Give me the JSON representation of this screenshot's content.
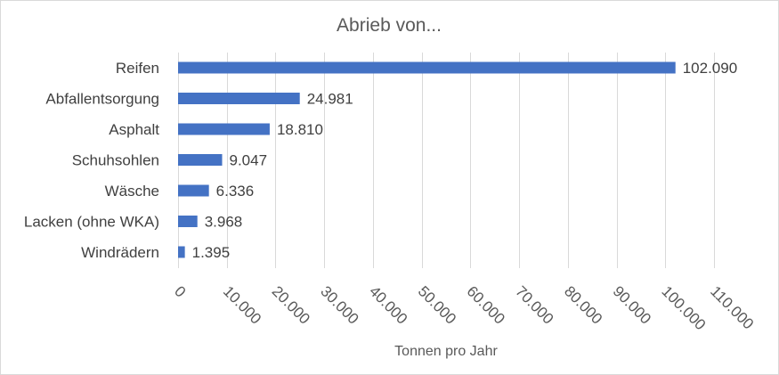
{
  "chart_data": {
    "type": "bar",
    "orientation": "horizontal",
    "title": "Abrieb von...",
    "xlabel": "Tonnen pro Jahr",
    "ylabel": "",
    "categories": [
      "Reifen",
      "Abfallentsorgung",
      "Asphalt",
      "Schuhsohlen",
      "Wäsche",
      "Lacken (ohne WKA)",
      "Windrädern"
    ],
    "values": [
      102090,
      24981,
      18810,
      9047,
      6336,
      3968,
      1395
    ],
    "value_labels": [
      "102.090",
      "24.981",
      "18.810",
      "9.047",
      "6.336",
      "3.968",
      "1.395"
    ],
    "xlim": [
      0,
      110000
    ],
    "ticks": [
      0,
      10000,
      20000,
      30000,
      40000,
      50000,
      60000,
      70000,
      80000,
      90000,
      100000,
      110000
    ],
    "tick_labels": [
      "0",
      "10.000",
      "20.000",
      "30.000",
      "40.000",
      "50.000",
      "60.000",
      "70.000",
      "80.000",
      "90.000",
      "100.000",
      "110.000"
    ],
    "grid": true,
    "legend": "none",
    "bar_color": "#4472c4"
  }
}
